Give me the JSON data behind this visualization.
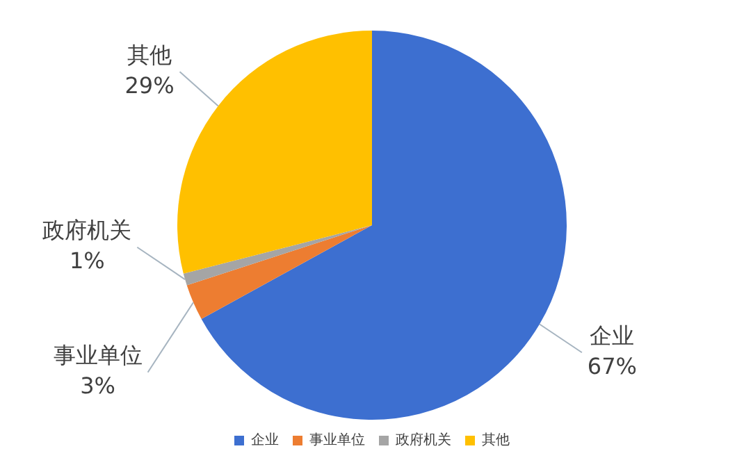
{
  "chart_data": {
    "type": "pie",
    "categories": [
      "企业",
      "事业单位",
      "政府机关",
      "其他"
    ],
    "values": [
      67,
      3,
      1,
      29
    ],
    "colors": [
      "#3d6fd0",
      "#ed7d31",
      "#a5a5a5",
      "#ffc000"
    ],
    "value_labels": [
      "67%",
      "3%",
      "1%",
      "29%"
    ],
    "legend": "bottom"
  }
}
